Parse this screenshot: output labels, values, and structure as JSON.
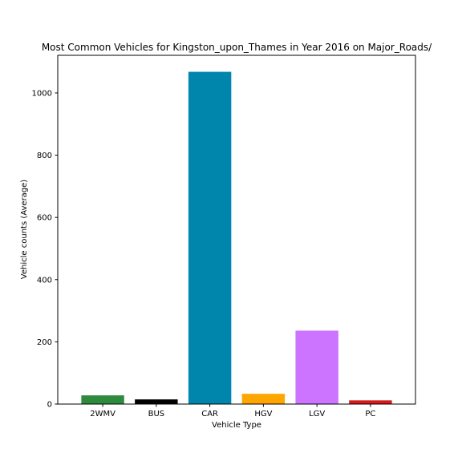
{
  "chart_data": {
    "type": "bar",
    "title": "Most Common Vehicles for Kingston_upon_Thames in Year 2016 on Major_Roads/",
    "xlabel": "Vehicle Type",
    "ylabel": "Vehicle counts (Average)",
    "categories": [
      "2WMV",
      "BUS",
      "CAR",
      "HGV",
      "LGV",
      "PC"
    ],
    "values": [
      28,
      15,
      1068,
      33,
      236,
      12
    ],
    "colors": [
      "#2e8b3e",
      "#000000",
      "#0086ad",
      "#ffa500",
      "#cc73ff",
      "#d61a1a"
    ],
    "yticks": [
      0,
      200,
      400,
      600,
      800,
      1000
    ],
    "ylim": [
      0,
      1121
    ],
    "grid": false,
    "legend": "none"
  }
}
